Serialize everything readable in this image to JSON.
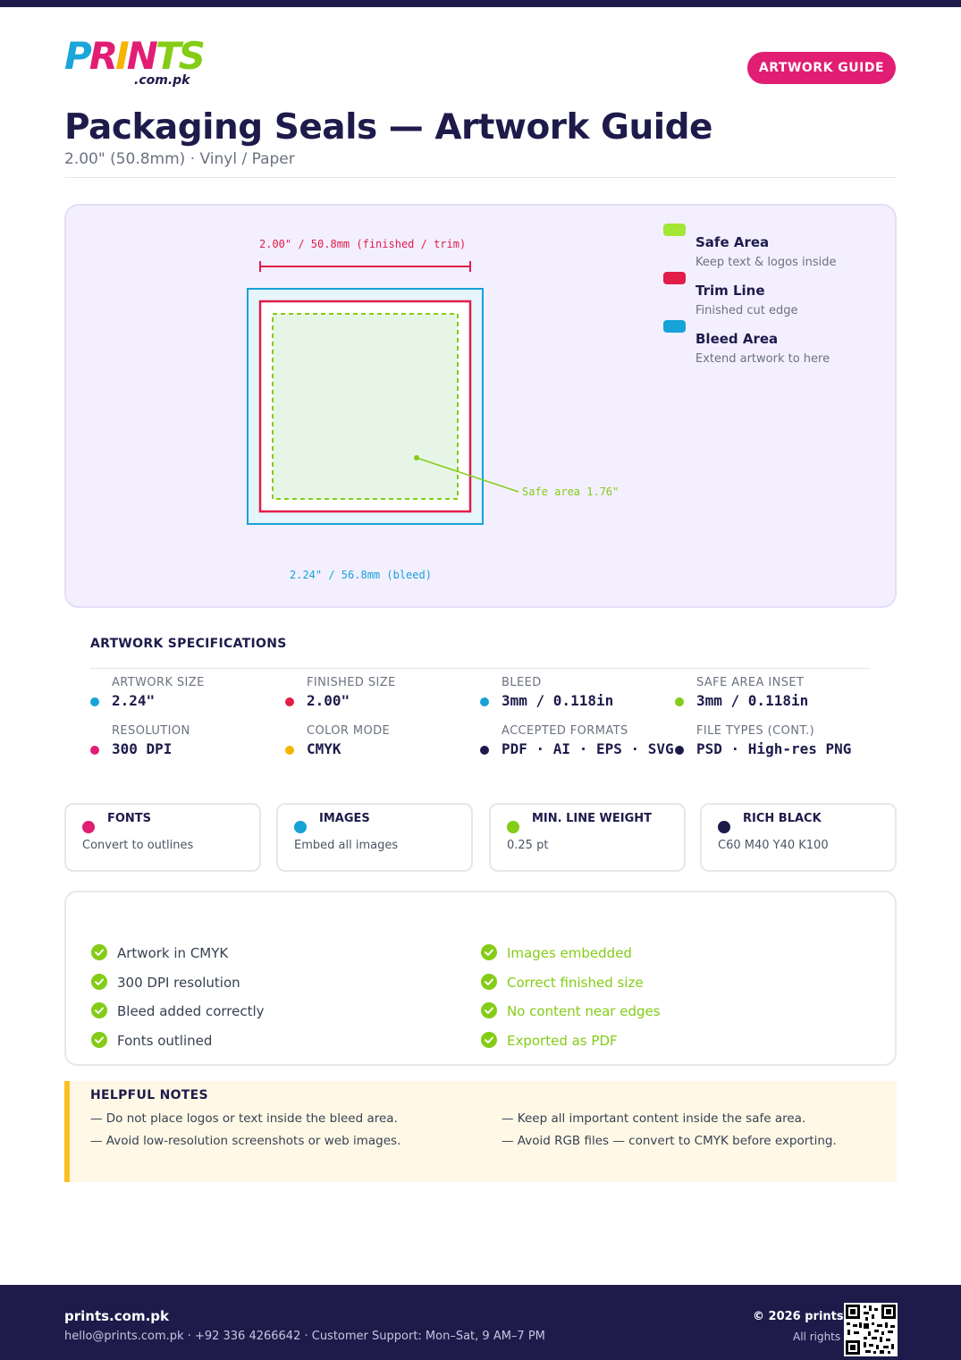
{
  "brand": {
    "logo_letters": [
      "P",
      "R",
      "I",
      "N",
      "T",
      "S"
    ],
    "logo_colors": [
      "#1aa6d8",
      "#e11d74",
      "#f5b400",
      "#e11d74",
      "#84cc16",
      "#84cc16"
    ],
    "logo_domain": ".com.pk",
    "accent": "#e11d74",
    "navy": "#1e1b4b"
  },
  "header": {
    "badge_label": "ARTWORK GUIDE",
    "title": "Packaging Seals — Artwork Guide",
    "subtitle": "2.00\" (50.8mm) · Vinyl / Paper"
  },
  "diagram": {
    "trim_label": "2.00\" / 50.8mm (finished / trim)",
    "safe_label": "Safe area 1.76\"",
    "bleed_label": "2.24\" / 56.8mm (bleed)",
    "legend": [
      {
        "title": "Safe Area",
        "desc": "Keep text & logos inside",
        "color": "#a3e635"
      },
      {
        "title": "Trim Line",
        "desc": "Finished cut edge",
        "color": "#e11d48"
      },
      {
        "title": "Bleed Area",
        "desc": "Extend artwork to here",
        "color": "#17a2d8"
      }
    ]
  },
  "specs": {
    "heading": "ARTWORK SPECIFICATIONS",
    "items": [
      {
        "label": "ARTWORK SIZE",
        "value": "2.24\"",
        "color": "#17a2d8"
      },
      {
        "label": "FINISHED SIZE",
        "value": "2.00\"",
        "color": "#e11d48"
      },
      {
        "label": "BLEED",
        "value": "3mm / 0.118in",
        "color": "#17a2d8"
      },
      {
        "label": "SAFE AREA INSET",
        "value": "3mm / 0.118in",
        "color": "#84cc16"
      },
      {
        "label": "RESOLUTION",
        "value": "300 DPI",
        "color": "#e11d74"
      },
      {
        "label": "COLOR MODE",
        "value": "CMYK",
        "color": "#f5b400"
      },
      {
        "label": "ACCEPTED FORMATS",
        "value": "PDF · AI · EPS · SVG",
        "color": "#1e1b4b"
      },
      {
        "label": "FILE TYPES (CONT.)",
        "value": "PSD · High-res PNG",
        "color": "#1e1b4b"
      }
    ]
  },
  "cards": [
    {
      "title": "FONTS",
      "desc": "Convert to outlines",
      "color": "#e11d74"
    },
    {
      "title": "IMAGES",
      "desc": "Embed all images",
      "color": "#17a2d8"
    },
    {
      "title": "MIN. LINE WEIGHT",
      "desc": "0.25 pt",
      "color": "#84cc16"
    },
    {
      "title": "RICH BLACK",
      "desc": "C60 M40 Y40 K100",
      "color": "#1e1b4b"
    }
  ],
  "checklist": {
    "left": [
      "Artwork in CMYK",
      "300 DPI resolution",
      "Bleed added correctly",
      "Fonts outlined"
    ],
    "right": [
      "Images embedded",
      "Correct finished size",
      "No content near edges",
      "Exported as PDF"
    ]
  },
  "notes": {
    "title": "HELPFUL NOTES",
    "items": [
      "— Do not place logos or text inside the bleed area.",
      "— Keep all important content inside the safe area.",
      "— Avoid low-resolution screenshots or web images.",
      "— Avoid RGB files — convert to CMYK before exporting."
    ]
  },
  "footer": {
    "brand": "prints.com.pk",
    "contact": "hello@prints.com.pk · +92 336 4266642 · Customer Support: Mon–Sat, 9 AM–7 PM",
    "copyright": "© 2026 prints.com.pk",
    "rights": "All rights reserved"
  }
}
